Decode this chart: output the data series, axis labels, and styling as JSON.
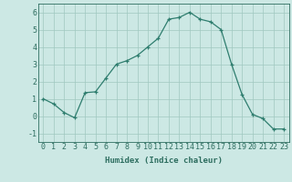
{
  "x": [
    0,
    1,
    2,
    3,
    4,
    5,
    6,
    7,
    8,
    9,
    10,
    11,
    12,
    13,
    14,
    15,
    16,
    17,
    18,
    19,
    20,
    21,
    22,
    23
  ],
  "y": [
    1.0,
    0.7,
    0.2,
    -0.1,
    1.35,
    1.4,
    2.2,
    3.0,
    3.2,
    3.5,
    4.0,
    4.5,
    5.6,
    5.7,
    6.0,
    5.6,
    5.45,
    5.0,
    3.0,
    1.25,
    0.1,
    -0.15,
    -0.75,
    -0.75
  ],
  "line_color": "#2e7d6e",
  "marker": "+",
  "marker_color": "#2e7d6e",
  "bg_color": "#cce8e4",
  "grid_color": "#a0c8c0",
  "axis_color": "#2e6e60",
  "xlabel": "Humidex (Indice chaleur)",
  "ylabel": "",
  "xlim": [
    -0.5,
    23.5
  ],
  "ylim": [
    -1.5,
    6.5
  ],
  "yticks": [
    -1,
    0,
    1,
    2,
    3,
    4,
    5,
    6
  ],
  "xticks": [
    0,
    1,
    2,
    3,
    4,
    5,
    6,
    7,
    8,
    9,
    10,
    11,
    12,
    13,
    14,
    15,
    16,
    17,
    18,
    19,
    20,
    21,
    22,
    23
  ],
  "label_fontsize": 6.5,
  "tick_fontsize": 6.0
}
